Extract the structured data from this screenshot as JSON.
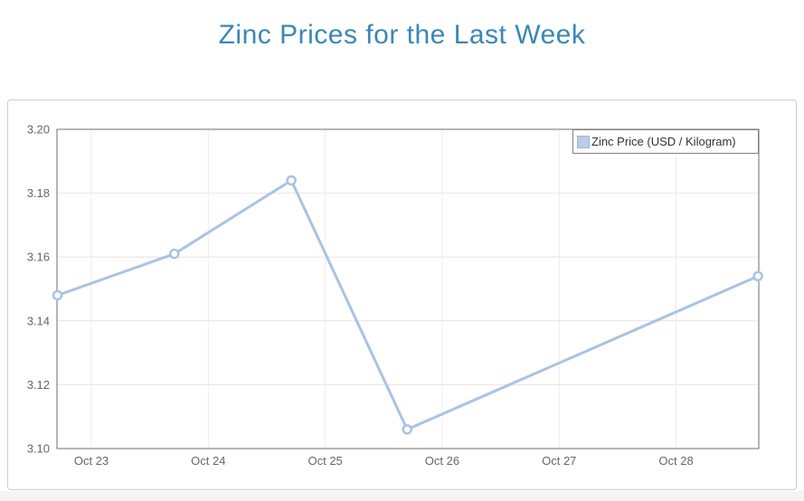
{
  "page": {
    "title": "Zinc Prices for the Last Week"
  },
  "colors": {
    "title": "#3a87b7",
    "panel_border": "#cccccc",
    "plot_border": "#6e6e6e",
    "gridline_h": "#e4e4e4",
    "gridline_v": "#ededed",
    "axis_label": "#666666",
    "legend_border": "#808080",
    "legend_text": "#333333",
    "series_line": "#a8c3e4",
    "marker_fill": "#ffffff",
    "page_strip": "#f4f4f4"
  },
  "chart_data": {
    "type": "line",
    "title": "Zinc Prices for the Last Week",
    "legend": {
      "label": "Zinc Price (USD / Kilogram)",
      "position": "top-right",
      "swatch_color": "#b9cde8",
      "swatch_border": "#9db4d6"
    },
    "x_axis": {
      "type": "datetime",
      "range_days": [
        -0.294,
        5.707
      ],
      "gridlines": true,
      "ticks": [
        {
          "day": 0,
          "label": "Oct 23"
        },
        {
          "day": 1,
          "label": "Oct 24"
        },
        {
          "day": 2,
          "label": "Oct 25"
        },
        {
          "day": 3,
          "label": "Oct 26"
        },
        {
          "day": 4,
          "label": "Oct 27"
        },
        {
          "day": 5,
          "label": "Oct 28"
        }
      ]
    },
    "y_axis": {
      "range": [
        3.1,
        3.2
      ],
      "tick_step": 0.02,
      "ticks": [
        "3.20",
        "3.18",
        "3.16",
        "3.14",
        "3.12",
        "3.10"
      ],
      "gridlines": true
    },
    "series": [
      {
        "name": "Zinc Price (USD / Kilogram)",
        "color": "#a8c3e4",
        "marker_fill": "#ffffff",
        "points": [
          {
            "date": "Oct 22",
            "x_day": -0.29,
            "value": 3.148
          },
          {
            "date": "Oct 23",
            "x_day": 0.71,
            "value": 3.161
          },
          {
            "date": "Oct 24",
            "x_day": 1.71,
            "value": 3.184
          },
          {
            "date": "Oct 25",
            "x_day": 2.7,
            "value": 3.106
          },
          {
            "date": "Oct 28",
            "x_day": 5.7,
            "value": 3.154
          }
        ]
      }
    ]
  }
}
